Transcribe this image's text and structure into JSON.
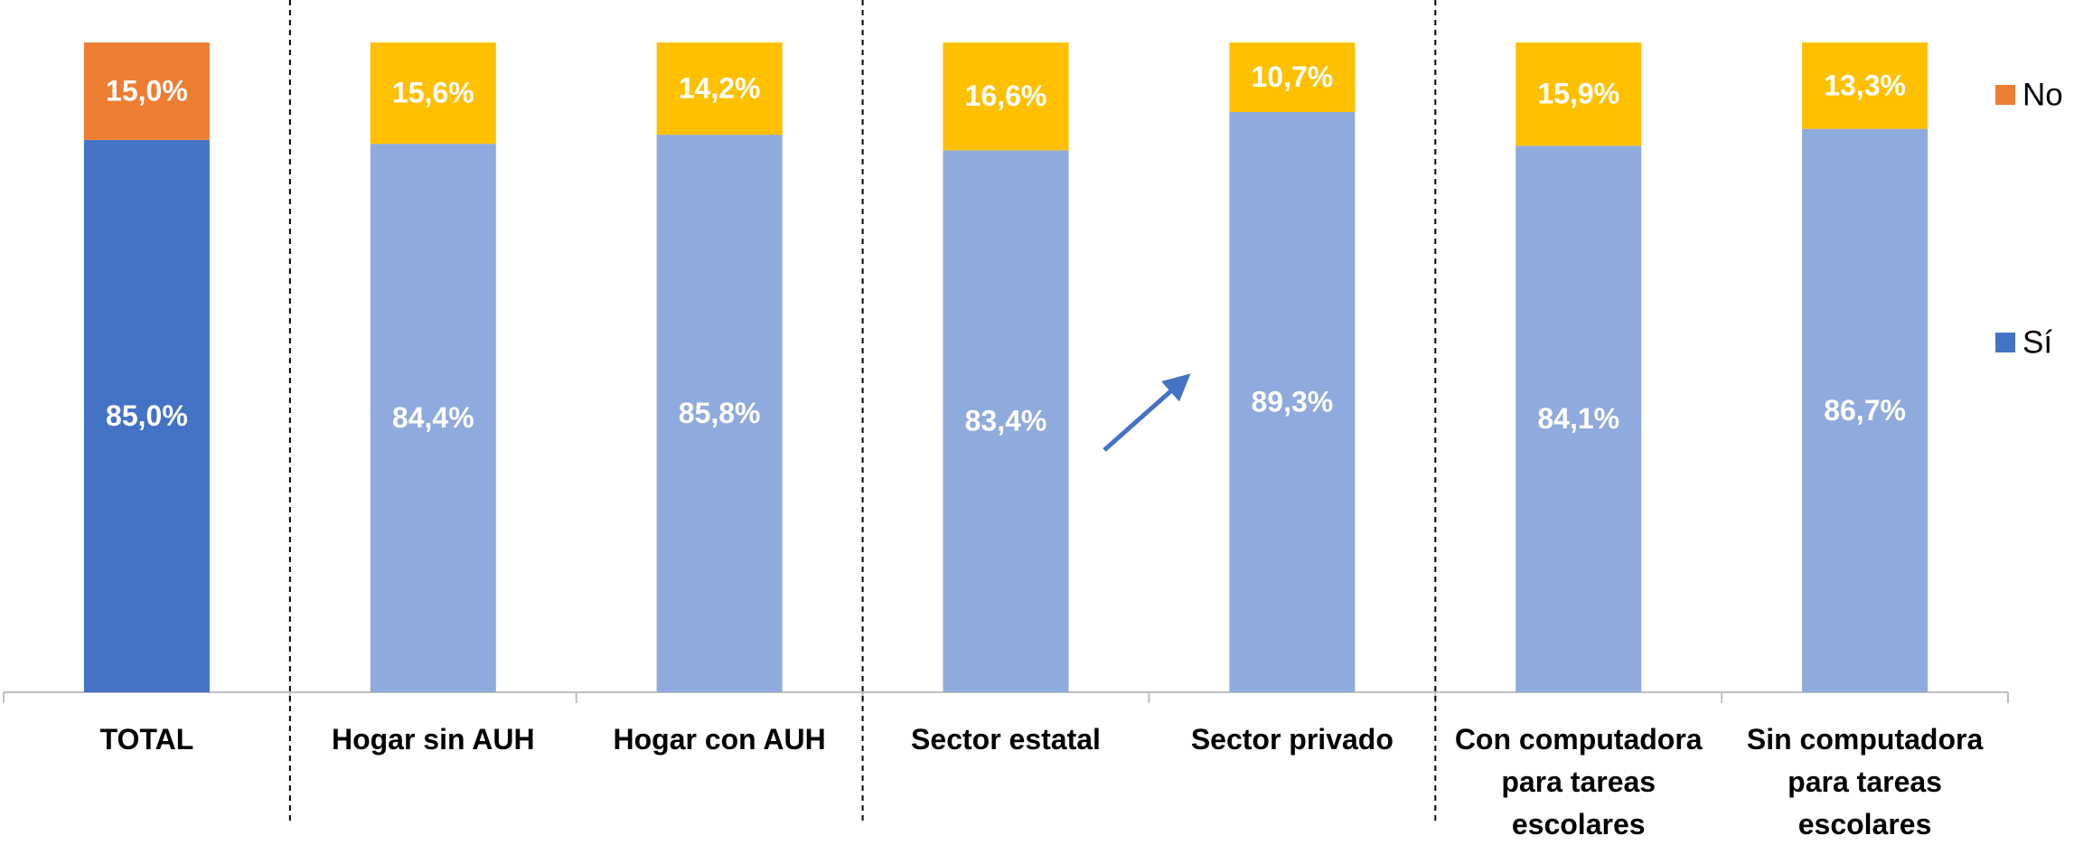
{
  "chart_data": {
    "type": "stacked_bar",
    "categories": [
      "TOTAL",
      "Hogar sin AUH",
      "Hogar con AUH",
      "Sector estatal",
      "Sector privado",
      "Con computadora para tareas escolares",
      "Sin computadora para tareas escolares"
    ],
    "series": [
      {
        "name": "Sí",
        "color": "#4472c4",
        "colors": [
          "#4472c4",
          "#8faadc",
          "#8faadc",
          "#8faadc",
          "#8faadc",
          "#8faadc",
          "#8faadc"
        ],
        "values": [
          85.0,
          84.4,
          85.8,
          83.4,
          89.3,
          84.1,
          86.7
        ],
        "value_labels": [
          "85,0%",
          "84,4%",
          "85,8%",
          "83,4%",
          "89,3%",
          "84,1%",
          "86,7%"
        ]
      },
      {
        "name": "No",
        "color": "#ed7d31",
        "colors": [
          "#ed7d31",
          "#ffc000",
          "#ffc000",
          "#ffc000",
          "#ffc000",
          "#ffc000",
          "#ffc000"
        ],
        "values": [
          15.0,
          15.6,
          14.2,
          16.6,
          10.7,
          15.9,
          13.3
        ],
        "value_labels": [
          "15,0%",
          "15,6%",
          "14,2%",
          "16,6%",
          "10,7%",
          "15,9%",
          "13,3%"
        ]
      }
    ],
    "ylim": [
      0,
      100
    ],
    "legend": "right"
  }
}
